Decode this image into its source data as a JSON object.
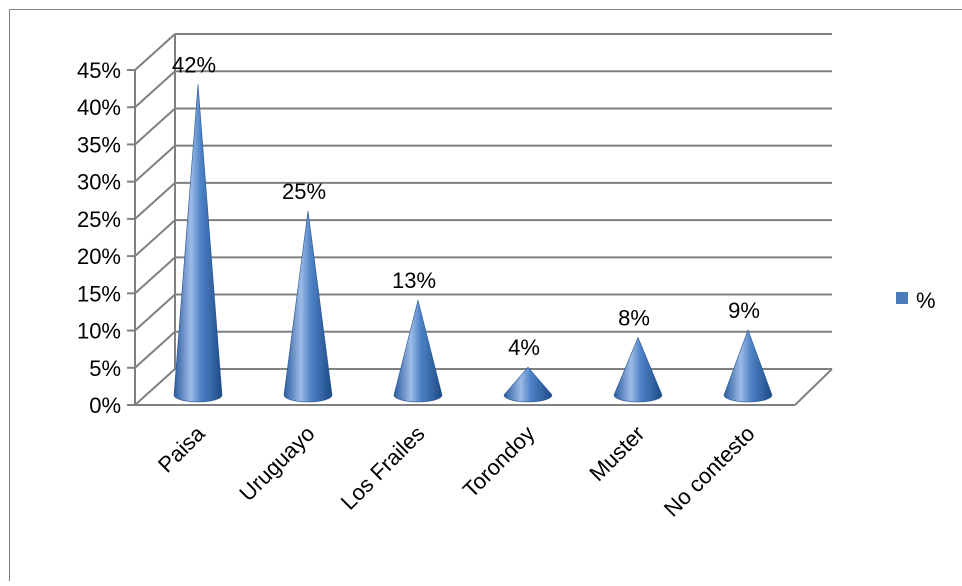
{
  "chart_data": {
    "type": "bar",
    "style": "3d-cone",
    "categories": [
      "Paisa",
      "Uruguayo",
      "Los Frailes",
      "Torondoy",
      "Muster",
      "No contesto"
    ],
    "series": [
      {
        "name": "%",
        "values": [
          42,
          25,
          13,
          4,
          8,
          9
        ]
      }
    ],
    "data_labels": [
      "42%",
      "25%",
      "13%",
      "4%",
      "8%",
      "9%"
    ],
    "y_ticks": [
      "0%",
      "5%",
      "10%",
      "15%",
      "20%",
      "25%",
      "30%",
      "35%",
      "40%",
      "45%"
    ],
    "ylim": [
      0,
      45
    ],
    "y_unit": "%",
    "grid": true,
    "legend_position": "right",
    "colors": {
      "cone": "#4a7ebb",
      "cone_dark": "#1f4e8c",
      "cone_light": "#a9c4e8",
      "grid": "#808080"
    }
  }
}
